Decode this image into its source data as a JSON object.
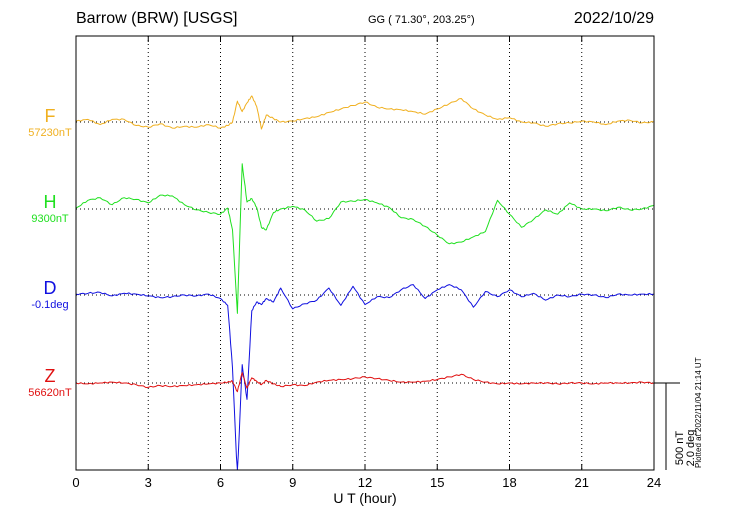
{
  "header": {
    "station": "Barrow (BRW)  [USGS]",
    "coords": "GG ( 71.30°, 203.25°)",
    "date": "2022/10/29"
  },
  "footer": {
    "plotted": "Plotted at 2022/11/04 21:14 UT"
  },
  "scale": {
    "nt": "500 nT",
    "deg": "2.0 deg"
  },
  "chart_data": {
    "type": "line",
    "title": "Barrow (BRW)  [USGS]",
    "xlabel": "U T (hour)",
    "ylabel": "",
    "xlim": [
      0,
      24
    ],
    "xticks": [
      0,
      3,
      6,
      9,
      12,
      15,
      18,
      21,
      24
    ],
    "grid": true,
    "series": [
      {
        "name": "F",
        "baseline_label": "57230nT",
        "color": "#f0b020",
        "x": [
          0,
          0.5,
          1,
          1.5,
          2,
          2.5,
          3,
          3.5,
          4,
          4.5,
          5,
          5.5,
          6,
          6.3,
          6.5,
          6.7,
          6.9,
          7.1,
          7.3,
          7.5,
          7.7,
          7.9,
          8.2,
          8.5,
          9,
          9.5,
          10,
          10.5,
          11,
          11.5,
          12,
          12.5,
          13,
          13.5,
          14,
          14.5,
          15,
          15.5,
          16,
          16.5,
          17,
          17.5,
          18,
          18.5,
          19,
          19.5,
          20,
          20.5,
          21,
          21.5,
          22,
          22.5,
          23,
          23.5,
          24
        ],
        "y": [
          5,
          15,
          -15,
          15,
          15,
          -20,
          -30,
          -10,
          -35,
          -25,
          -30,
          -15,
          -35,
          -20,
          0,
          120,
          60,
          110,
          150,
          90,
          -40,
          40,
          20,
          0,
          5,
          20,
          30,
          55,
          75,
          95,
          115,
          85,
          75,
          70,
          60,
          45,
          75,
          105,
          135,
          75,
          40,
          15,
          25,
          0,
          -5,
          -25,
          -10,
          -5,
          5,
          0,
          -15,
          5,
          10,
          -5,
          0
        ]
      },
      {
        "name": "H",
        "baseline_label": "9300nT",
        "color": "#20e020",
        "x": [
          0,
          0.5,
          1,
          1.5,
          2,
          2.5,
          3,
          3.5,
          4,
          4.5,
          5,
          5.5,
          6,
          6.3,
          6.5,
          6.7,
          6.9,
          7.1,
          7.3,
          7.5,
          7.7,
          7.9,
          8.2,
          8.5,
          9,
          9.5,
          10,
          10.5,
          11,
          11.5,
          12,
          12.5,
          13,
          13.5,
          14,
          14.5,
          15,
          15.5,
          16,
          16.5,
          17,
          17.5,
          18,
          18.5,
          19,
          19.5,
          20,
          20.5,
          21,
          21.5,
          22,
          22.5,
          23,
          23.5,
          24
        ],
        "y": [
          5,
          50,
          65,
          25,
          65,
          55,
          35,
          80,
          75,
          25,
          -5,
          -20,
          -30,
          5,
          -120,
          -600,
          260,
          40,
          60,
          10,
          -105,
          -120,
          -20,
          0,
          15,
          -5,
          -70,
          -55,
          40,
          45,
          55,
          35,
          10,
          -50,
          -60,
          -100,
          -150,
          -200,
          -190,
          -160,
          -130,
          50,
          -30,
          -105,
          -60,
          -5,
          -30,
          35,
          0,
          0,
          -10,
          10,
          -5,
          0,
          20
        ]
      },
      {
        "name": "D",
        "baseline_label": "-0.1deg",
        "color": "#1010e0",
        "x": [
          0,
          0.5,
          1,
          1.5,
          2,
          2.5,
          3,
          3.5,
          4,
          4.5,
          5,
          5.5,
          6,
          6.3,
          6.5,
          6.7,
          6.9,
          7.1,
          7.3,
          7.5,
          7.7,
          7.9,
          8.2,
          8.5,
          9,
          9.5,
          10,
          10.5,
          11,
          11.5,
          12,
          12.5,
          13,
          13.5,
          14,
          14.5,
          15,
          15.5,
          16,
          16.5,
          17,
          17.5,
          18,
          18.5,
          19,
          19.5,
          20,
          20.5,
          21,
          21.5,
          22,
          22.5,
          23,
          23.5,
          24
        ],
        "y": [
          5,
          10,
          15,
          -5,
          10,
          5,
          -5,
          -15,
          -10,
          0,
          -5,
          5,
          -20,
          -60,
          -420,
          -1050,
          -400,
          -600,
          -90,
          -40,
          -55,
          -20,
          -40,
          40,
          -80,
          -50,
          -30,
          40,
          -60,
          50,
          -55,
          -10,
          -15,
          30,
          60,
          -20,
          30,
          60,
          30,
          -70,
          20,
          -10,
          30,
          -10,
          10,
          -30,
          0,
          -10,
          5,
          0,
          -15,
          5,
          0,
          5,
          5
        ]
      },
      {
        "name": "Z",
        "baseline_label": "56620nT",
        "color": "#e01010",
        "x": [
          0,
          0.5,
          1,
          1.5,
          2,
          2.5,
          3,
          3.5,
          4,
          4.5,
          5,
          5.5,
          6,
          6.3,
          6.5,
          6.7,
          6.9,
          7.1,
          7.3,
          7.5,
          7.7,
          7.9,
          8.2,
          8.5,
          9,
          9.5,
          10,
          10.5,
          11,
          11.5,
          12,
          12.5,
          13,
          13.5,
          14,
          14.5,
          15,
          15.5,
          16,
          16.5,
          17,
          17.5,
          18,
          18.5,
          19,
          19.5,
          20,
          20.5,
          21,
          21.5,
          22,
          22.5,
          23,
          23.5,
          24
        ],
        "y": [
          0,
          -5,
          0,
          5,
          0,
          -10,
          -25,
          -15,
          -20,
          -15,
          -10,
          -5,
          0,
          5,
          10,
          -50,
          60,
          -30,
          30,
          10,
          -10,
          15,
          -5,
          -20,
          -10,
          -15,
          5,
          15,
          20,
          25,
          35,
          25,
          15,
          5,
          5,
          10,
          20,
          35,
          50,
          20,
          5,
          -5,
          0,
          -5,
          0,
          0,
          -5,
          0,
          0,
          -5,
          0,
          0,
          0,
          5,
          0
        ]
      }
    ]
  }
}
